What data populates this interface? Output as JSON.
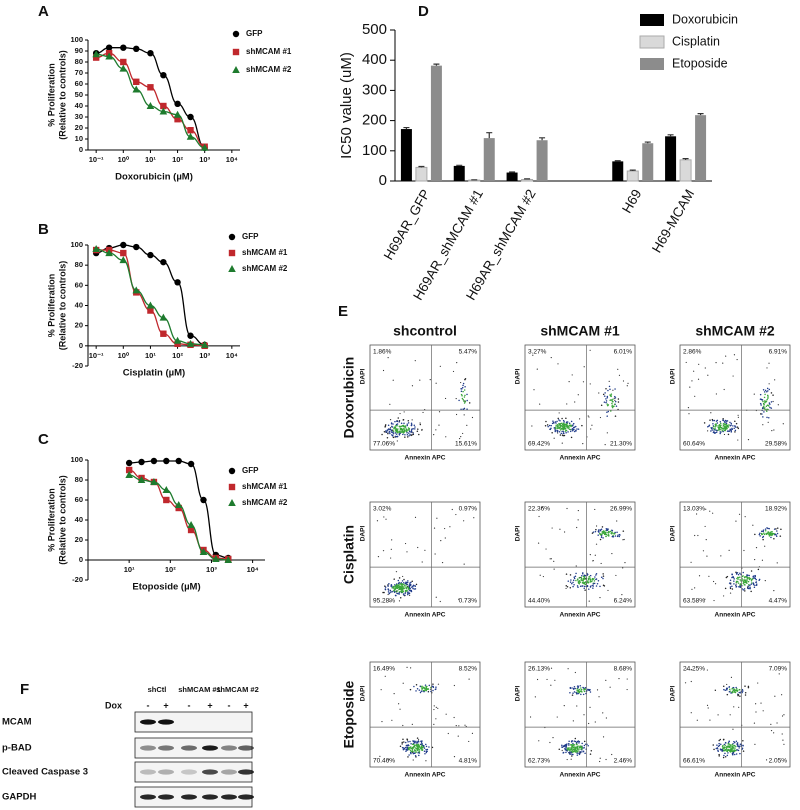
{
  "chart_data": [
    {
      "type": "scatter",
      "panel": "A",
      "xscale": "log",
      "xlabel": "Doxorubicin (µM)",
      "ylabel": [
        "% Proliferation",
        "(Relative to controls)"
      ],
      "x": [
        0.1,
        0.3,
        1,
        3,
        10,
        30,
        100,
        300,
        1000
      ],
      "xlim": [
        0.05,
        20000
      ],
      "xticks": [
        {
          "value": 0.1,
          "label": "10⁻¹"
        },
        {
          "value": 1,
          "label": "10⁰"
        },
        {
          "value": 10,
          "label": "10¹"
        },
        {
          "value": 100,
          "label": "10²"
        },
        {
          "value": 1000,
          "label": "10³"
        },
        {
          "value": 10000,
          "label": "10⁴"
        }
      ],
      "ylim": [
        0,
        100
      ],
      "yticks": [
        0,
        10,
        20,
        30,
        40,
        50,
        60,
        70,
        80,
        90,
        100
      ],
      "series": [
        {
          "name": "GFP",
          "color": "#000000",
          "marker": "circle",
          "values": [
            88,
            93,
            93,
            92,
            88,
            68,
            42,
            30,
            2
          ]
        },
        {
          "name": "shMCAM #1",
          "color": "#c0282d",
          "marker": "square",
          "values": [
            84,
            88,
            80,
            62,
            57,
            40,
            28,
            18,
            3
          ]
        },
        {
          "name": "shMCAM #2",
          "color": "#1e7b2e",
          "marker": "triangle",
          "values": [
            87,
            85,
            74,
            55,
            40,
            35,
            32,
            12,
            2
          ]
        }
      ]
    },
    {
      "type": "scatter",
      "panel": "B",
      "xscale": "log",
      "xlabel": "Cisplatin (µM)",
      "ylabel": [
        "% Proliferation",
        "(Relative to controls)"
      ],
      "x": [
        0.1,
        0.3,
        1,
        3,
        10,
        30,
        100,
        300,
        1000
      ],
      "xlim": [
        0.05,
        20000
      ],
      "xticks": [
        {
          "value": 0.1,
          "label": "10⁻¹"
        },
        {
          "value": 1,
          "label": "10⁰"
        },
        {
          "value": 10,
          "label": "10¹"
        },
        {
          "value": 100,
          "label": "10²"
        },
        {
          "value": 1000,
          "label": "10³"
        },
        {
          "value": 10000,
          "label": "10⁴"
        }
      ],
      "ylim": [
        -20,
        100
      ],
      "yticks": [
        -20,
        0,
        20,
        40,
        60,
        80,
        100
      ],
      "series": [
        {
          "name": "GFP",
          "color": "#000000",
          "marker": "circle",
          "values": [
            92,
            97,
            100,
            98,
            90,
            83,
            63,
            10,
            1
          ]
        },
        {
          "name": "shMCAM #1",
          "color": "#c0282d",
          "marker": "square",
          "values": [
            95,
            95,
            92,
            53,
            35,
            12,
            2,
            1,
            0
          ]
        },
        {
          "name": "shMCAM #2",
          "color": "#1e7b2e",
          "marker": "triangle",
          "values": [
            96,
            92,
            85,
            55,
            40,
            28,
            5,
            2,
            1
          ]
        }
      ]
    },
    {
      "type": "scatter",
      "panel": "C",
      "xscale": "log",
      "xlabel": "Etoposide (µM)",
      "ylabel": [
        "% Proliferation",
        "(Relative to controls)"
      ],
      "x": [
        10,
        20,
        40,
        80,
        160,
        320,
        640,
        1280,
        2560
      ],
      "xlim": [
        1,
        20000
      ],
      "xticks": [
        {
          "value": 10,
          "label": "10¹"
        },
        {
          "value": 100,
          "label": "10²"
        },
        {
          "value": 1000,
          "label": "10³"
        },
        {
          "value": 10000,
          "label": "10⁴"
        }
      ],
      "ylim": [
        -20,
        100
      ],
      "yticks": [
        -20,
        0,
        20,
        40,
        60,
        80,
        100
      ],
      "series": [
        {
          "name": "GFP",
          "color": "#000000",
          "marker": "circle",
          "values": [
            97,
            98,
            99,
            99,
            99,
            96,
            60,
            5,
            2
          ]
        },
        {
          "name": "shMCAM #1",
          "color": "#c0282d",
          "marker": "square",
          "values": [
            90,
            82,
            78,
            60,
            52,
            30,
            10,
            2,
            1
          ]
        },
        {
          "name": "shMCAM #2",
          "color": "#1e7b2e",
          "marker": "triangle",
          "values": [
            85,
            80,
            78,
            70,
            55,
            35,
            8,
            1,
            0
          ]
        }
      ]
    },
    {
      "type": "bar",
      "panel": "D",
      "ylabel": "IC50 value (uM)",
      "categories": [
        "H69AR_GFP",
        "H69AR_shMCAM #1",
        "H69AR_shMCAM #2",
        null,
        "H69",
        "H69-MCAM"
      ],
      "ylim": [
        0,
        500
      ],
      "yticks": [
        0,
        100,
        200,
        300,
        400,
        500
      ],
      "series": [
        {
          "name": "Doxorubicin",
          "color": "#000000",
          "values": [
            172,
            50,
            28,
            null,
            65,
            148
          ],
          "errors": [
            5,
            2,
            2,
            null,
            2,
            5
          ]
        },
        {
          "name": "Cisplatin",
          "color": "#d9d9d9",
          "values": [
            45,
            3,
            5,
            null,
            33,
            70
          ],
          "errors": [
            3,
            1,
            2,
            null,
            3,
            4
          ]
        },
        {
          "name": "Etoposide",
          "color": "#8c8c8c",
          "values": [
            382,
            142,
            135,
            null,
            125,
            218
          ],
          "errors": [
            5,
            18,
            8,
            null,
            4,
            5
          ]
        }
      ]
    }
  ],
  "flow": {
    "panel": "E",
    "columns": [
      "shcontrol",
      "shMCAM #1",
      "shMCAM #2"
    ],
    "rows": [
      "Doxorubicin",
      "Cisplatin",
      "Etoposide"
    ],
    "x_axis": "Annexin APC",
    "y_axis": "DAPI",
    "cells": [
      [
        {
          "ul": "1.86%",
          "ur": "5.47%",
          "ll": "77.06%",
          "lr": "15.61%"
        },
        {
          "ul": "3.27%",
          "ur": "6.01%",
          "ll": "69.42%",
          "lr": "21.30%"
        },
        {
          "ul": "2.86%",
          "ur": "6.91%",
          "ll": "60.64%",
          "lr": "29.58%"
        }
      ],
      [
        {
          "ul": "3.02%",
          "ur": "0.97%",
          "ll": "95.28%",
          "lr": "0.73%"
        },
        {
          "ul": "22.36%",
          "ur": "26.99%",
          "ll": "44.40%",
          "lr": "6.24%"
        },
        {
          "ul": "13.03%",
          "ur": "18.92%",
          "ll": "63.58%",
          "lr": "4.47%"
        }
      ],
      [
        {
          "ul": "16.49%",
          "ur": "8.52%",
          "ll": "70.46%",
          "lr": "4.81%"
        },
        {
          "ul": "26.13%",
          "ur": "8.68%",
          "ll": "62.73%",
          "lr": "2.46%"
        },
        {
          "ul": "24.25%",
          "ur": "7.09%",
          "ll": "66.61%",
          "lr": "2.05%"
        }
      ]
    ]
  },
  "blot": {
    "panel": "F",
    "groups": [
      "shCtl",
      "shMCAM #1",
      "shMCAM #2"
    ],
    "treatment_label": "Dox",
    "treatment": [
      "-",
      "+",
      "-",
      "+",
      "-",
      "+"
    ],
    "rows": [
      "MCAM",
      "p-BAD",
      "Cleaved Caspase 3",
      "GAPDH"
    ]
  }
}
